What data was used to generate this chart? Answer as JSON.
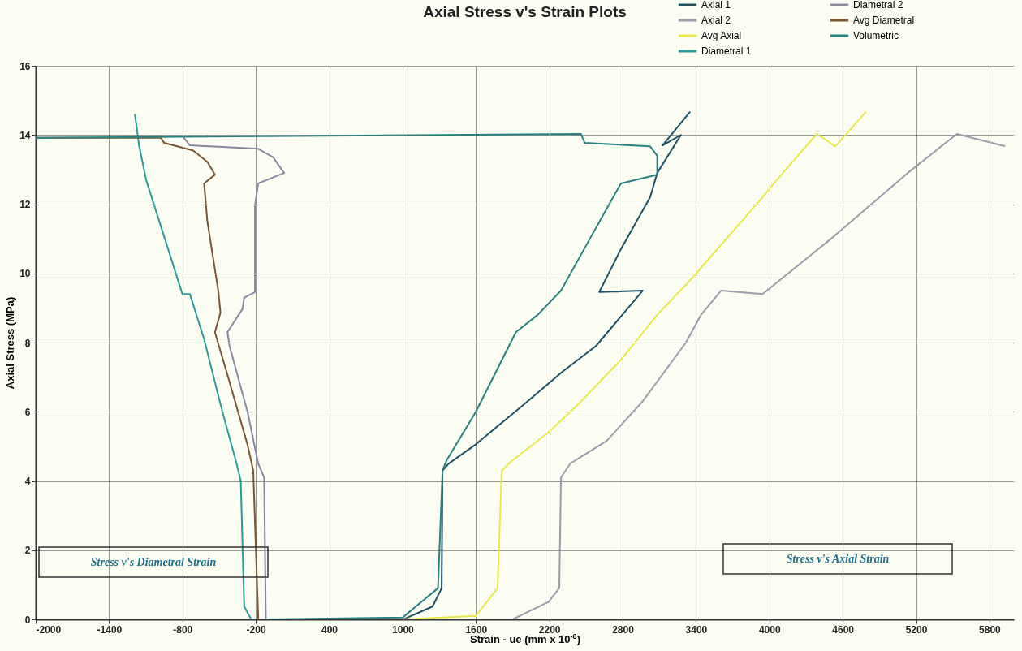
{
  "chart_data": {
    "type": "line",
    "title": "Axial Stress v's Strain Plots",
    "xlabel": "Strain - ue (mm x 10$^{-6}$)",
    "ylabel": "Axial Stress (MPa)",
    "xlim": [
      -2000,
      6000
    ],
    "xticks": [
      -2000,
      -1400,
      -800,
      -200,
      400,
      1000,
      1600,
      2200,
      2800,
      3400,
      4000,
      4600,
      5200,
      5800
    ],
    "ylim": [
      0,
      16
    ],
    "yticks": [
      0,
      2,
      4,
      6,
      8,
      10,
      12,
      14,
      16
    ],
    "grid": true,
    "legend": "top right",
    "marker": "none",
    "line_style": "solid",
    "annotations": [
      "Stress v's Diametral Strain",
      "Stress v's Axial Strain"
    ],
    "series": [
      {
        "name": "Axial 1",
        "color": "#1f5066",
        "x": [
          1007,
          1245,
          1320,
          1327,
          1378,
          1600,
          1989,
          2309,
          2582,
          2964,
          2609,
          2786,
          3025,
          3083,
          3277,
          3127,
          3352
        ],
        "values": [
          0,
          0.37,
          0.9,
          4.3,
          4.5,
          5.06,
          6.2,
          7.16,
          7.9,
          9.5,
          9.46,
          10.7,
          12.2,
          12.9,
          14.0,
          13.7,
          14.67
        ]
      },
      {
        "name": "Axial 2",
        "color": "#a09aa8",
        "x": [
          1900,
          2193,
          2282,
          2296,
          2371,
          2670,
          2964,
          3318,
          3441,
          3605,
          3945,
          4539,
          5131,
          5534,
          5930
        ],
        "values": [
          0,
          0.5,
          0.9,
          4.1,
          4.5,
          5.16,
          6.3,
          8.0,
          8.8,
          9.5,
          9.4,
          11.1,
          12.9,
          14.03,
          13.67
        ]
      },
      {
        "name": "Avg Axial",
        "color": "#e8e84a",
        "x": [
          1000,
          1600,
          1777,
          1811,
          1900,
          2193,
          2432,
          2786,
          3083,
          3352,
          3945,
          4061,
          4389,
          4539,
          4791
        ],
        "values": [
          0,
          0.1,
          0.9,
          4.3,
          4.6,
          5.4,
          6.2,
          7.5,
          8.8,
          9.8,
          12.2,
          12.7,
          14.03,
          13.67,
          14.67
        ]
      },
      {
        "name": "Diametral 1",
        "color": "#2a9a9a",
        "x": [
          -237,
          -295,
          -323,
          -357,
          -473,
          -623,
          -739,
          -800,
          -1097,
          -1155,
          -1189
        ],
        "values": [
          0,
          0.37,
          4.0,
          4.5,
          6.0,
          8.1,
          9.4,
          9.4,
          12.7,
          13.7,
          14.6
        ]
      },
      {
        "name": "Diametral 2",
        "color": "#8a88a0",
        "x": [
          -118,
          -132,
          -180,
          -268,
          -415,
          -432,
          -309,
          -295,
          -207,
          -207,
          -180,
          32,
          -57,
          -180,
          -739,
          -800
        ],
        "values": [
          0,
          4.1,
          4.5,
          6.0,
          7.9,
          8.3,
          8.97,
          9.3,
          9.46,
          11.96,
          12.6,
          12.9,
          13.35,
          13.6,
          13.7,
          13.97
        ]
      },
      {
        "name": "Avg Diametral",
        "color": "#7a5530",
        "x": [
          -180,
          -221,
          -268,
          -415,
          -534,
          -489,
          -507,
          -596,
          -623,
          -534,
          -596,
          -711,
          -950,
          -977,
          -2000
        ],
        "values": [
          0,
          4.3,
          5.05,
          6.86,
          8.3,
          8.87,
          9.5,
          11.5,
          12.6,
          12.85,
          13.22,
          13.55,
          13.77,
          13.92,
          13.92
        ]
      },
      {
        "name": "Volumetric",
        "color": "#2a8080",
        "x": [
          -100,
          1000,
          1290,
          1327,
          1361,
          1600,
          1927,
          2105,
          2296,
          2548,
          2786,
          3083,
          3083,
          3025,
          2490,
          2459,
          -2000
        ],
        "values": [
          0,
          0.05,
          0.9,
          4.3,
          4.6,
          6.0,
          8.3,
          8.8,
          9.5,
          11.1,
          12.6,
          12.85,
          13.4,
          13.67,
          13.77,
          14.03,
          13.92
        ]
      }
    ]
  }
}
